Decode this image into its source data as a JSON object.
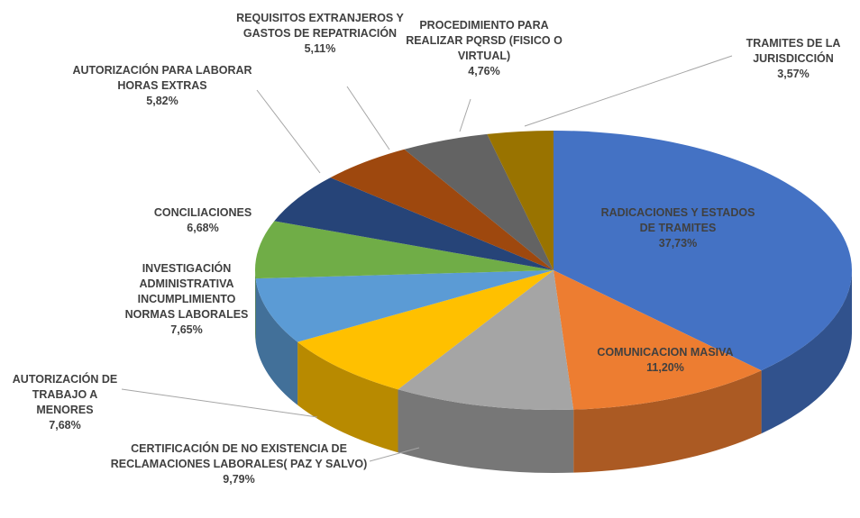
{
  "chart_data": {
    "type": "pie",
    "three_d": true,
    "categories": [
      "RADICACIONES Y ESTADOS DE TRAMITES",
      "COMUNICACION MASIVA",
      "CERTIFICACIÓN DE NO EXISTENCIA DE RECLAMACIONES LABORALES( PAZ Y SALVO)",
      "AUTORIZACIÓN DE TRABAJO A MENORES",
      "INVESTIGACIÓN ADMINISTRATIVA INCUMPLIMIENTO NORMAS LABORALES",
      "CONCILIACIONES",
      "AUTORIZACIÓN PARA LABORAR HORAS EXTRAS",
      "REQUISITOS EXTRANJEROS Y GASTOS DE REPATRIACIÓN",
      "PROCEDIMIENTO PARA REALIZAR PQRSD (FISICO O VIRTUAL)",
      "TRAMITES DE LA JURISDICCIÓN"
    ],
    "values": [
      37.73,
      11.2,
      9.79,
      7.68,
      7.65,
      6.68,
      5.82,
      5.11,
      4.76,
      3.57
    ],
    "value_labels": [
      "37,73%",
      "11,20%",
      "9,79%",
      "7,68%",
      "7,65%",
      "6,68%",
      "5,82%",
      "5,11%",
      "4,76%",
      "3,57%"
    ],
    "colors": [
      "#4472c4",
      "#ed7d31",
      "#a5a5a5",
      "#ffc000",
      "#5b9bd5",
      "#70ad47",
      "#264478",
      "#9e480e",
      "#636363",
      "#997300"
    ]
  }
}
